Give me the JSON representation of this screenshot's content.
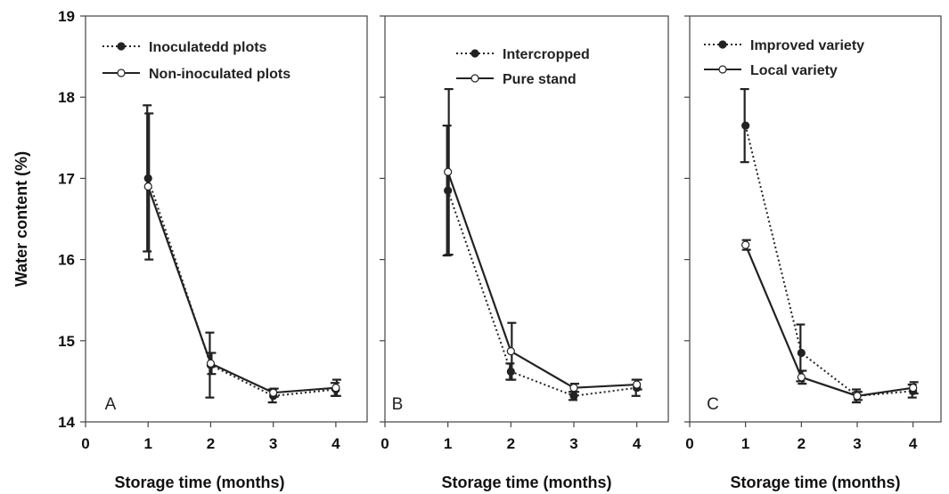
{
  "chart_data": [
    {
      "type": "line",
      "panel_label": "A",
      "xlabel": "Storage time (months)",
      "ylabel": "Water content (%)",
      "xlim": [
        0,
        4.5
      ],
      "ylim": [
        14,
        19
      ],
      "x_ticks": [
        "0",
        "1",
        "2",
        "3",
        "4"
      ],
      "y_ticks": [
        "14",
        "15",
        "16",
        "17",
        "18",
        "19"
      ],
      "show_y_tick_labels": true,
      "grid": false,
      "legend_position": "top-left",
      "x": [
        1,
        2,
        3,
        4
      ],
      "series": [
        {
          "name": "Inoculatedd plots",
          "style": "dotted",
          "marker": "filled",
          "values": [
            17.0,
            14.7,
            14.32,
            14.4
          ],
          "errors": [
            0.9,
            0.4,
            0.08,
            0.08
          ]
        },
        {
          "name": "Non-inoculated plots",
          "style": "solid",
          "marker": "open",
          "values": [
            16.9,
            14.72,
            14.36,
            14.42
          ],
          "errors": [
            0.9,
            0.13,
            0.05,
            0.1
          ]
        }
      ]
    },
    {
      "type": "line",
      "panel_label": "B",
      "xlabel": "Storage time (months)",
      "ylabel": "",
      "xlim": [
        0,
        4.5
      ],
      "ylim": [
        14,
        19
      ],
      "x_ticks": [
        "0",
        "1",
        "2",
        "3",
        "4"
      ],
      "y_ticks": [],
      "show_y_tick_labels": false,
      "grid": false,
      "legend_position": "top-right",
      "x": [
        1,
        2,
        3,
        4
      ],
      "series": [
        {
          "name": "Intercropped",
          "style": "dotted",
          "marker": "filled",
          "values": [
            16.85,
            14.62,
            14.32,
            14.42
          ],
          "errors": [
            0.8,
            0.1,
            0.05,
            0.1
          ]
        },
        {
          "name": "Pure stand",
          "style": "solid",
          "marker": "open",
          "values": [
            17.08,
            14.87,
            14.42,
            14.46
          ],
          "errors": [
            1.02,
            0.35,
            0.05,
            0.06
          ]
        }
      ]
    },
    {
      "type": "line",
      "panel_label": "C",
      "xlabel": "Storage time (months)",
      "ylabel": "",
      "xlim": [
        0,
        4.5
      ],
      "ylim": [
        14,
        19
      ],
      "x_ticks": [
        "0",
        "1",
        "2",
        "3",
        "4"
      ],
      "y_ticks": [],
      "show_y_tick_labels": false,
      "grid": false,
      "legend_position": "top-left",
      "x": [
        1,
        2,
        3,
        4
      ],
      "series": [
        {
          "name": "Improved variety",
          "style": "dotted",
          "marker": "filled",
          "values": [
            17.65,
            14.85,
            14.32,
            14.38
          ],
          "errors": [
            0.45,
            0.35,
            0.08,
            0.08
          ]
        },
        {
          "name": "Local variety",
          "style": "solid",
          "marker": "open",
          "values": [
            16.18,
            14.55,
            14.32,
            14.42
          ],
          "errors": [
            0.06,
            0.08,
            0.05,
            0.07
          ]
        }
      ]
    }
  ]
}
